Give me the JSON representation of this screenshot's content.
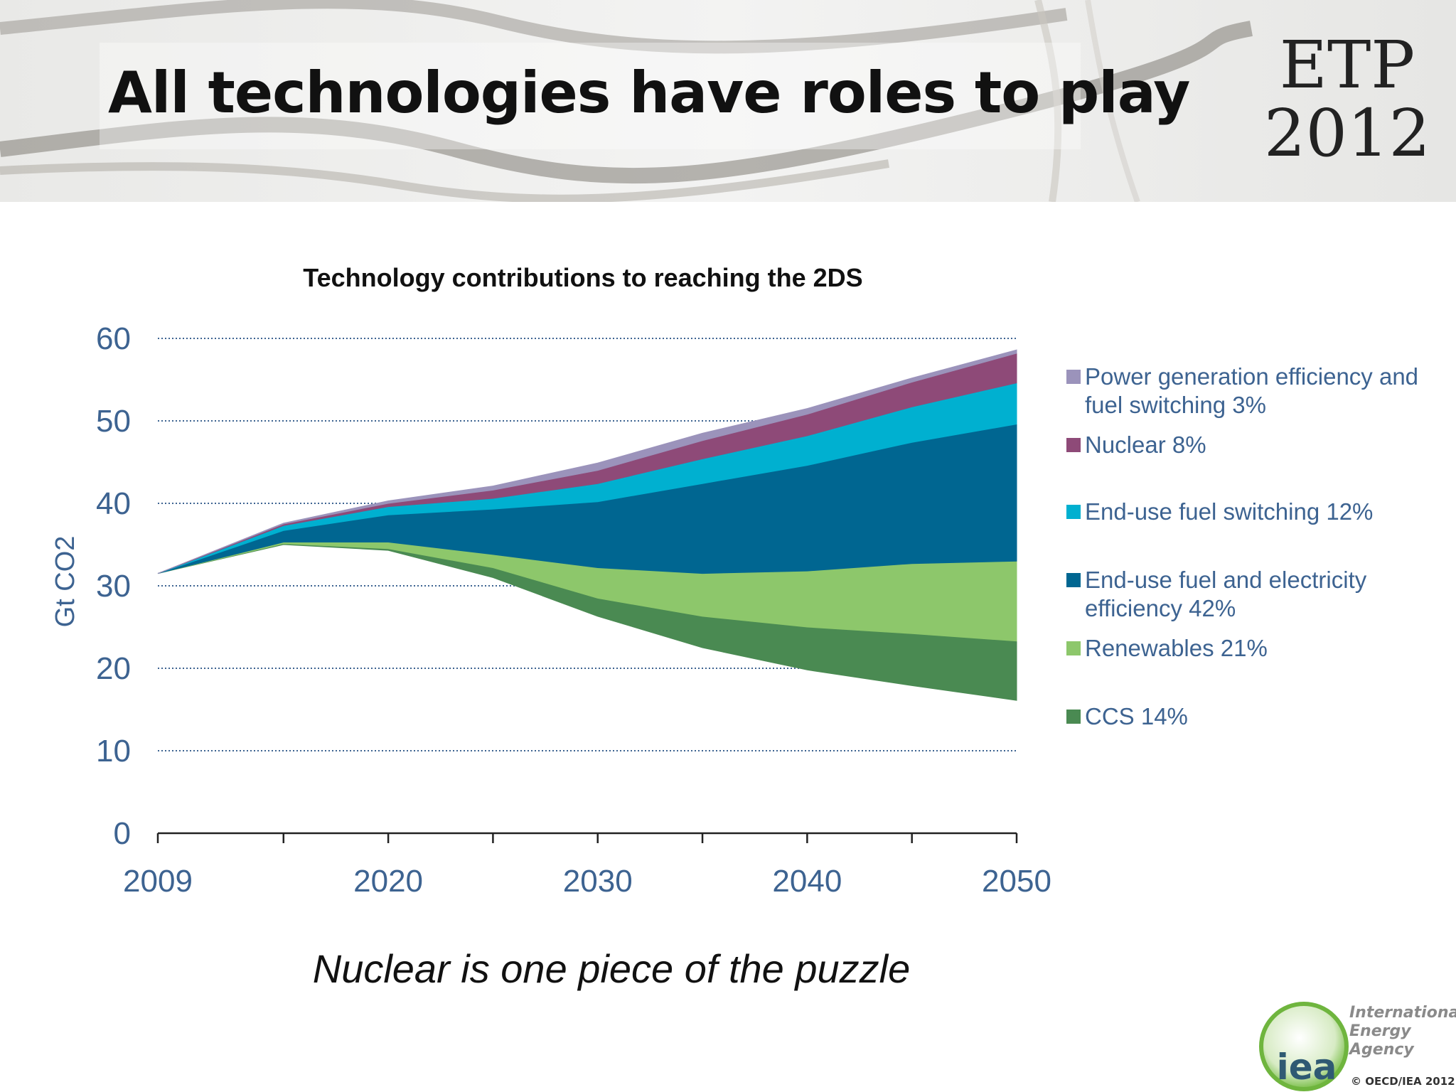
{
  "slide": {
    "title": "All technologies have roles to play",
    "brand_line1": "ETP",
    "brand_line2": "2012",
    "subtitle": "Nuclear is one piece of the puzzle",
    "organization_name": "International Energy Agency",
    "organization_short": "iea",
    "copyright": "© OECD/IEA 2012"
  },
  "chart_data": {
    "type": "area",
    "title": "Technology contributions to reaching the 2DS",
    "xlabel": "",
    "ylabel": "Gt CO2",
    "x": [
      2009,
      2015,
      2020,
      2025,
      2030,
      2035,
      2040,
      2045,
      2050
    ],
    "xlim": [
      2009,
      2050
    ],
    "ylim": [
      0,
      60
    ],
    "x_ticks": [
      2009,
      2020,
      2030,
      2040,
      2050
    ],
    "y_ticks": [
      0,
      10,
      20,
      30,
      40,
      50,
      60
    ],
    "grid": "horizontal dotted",
    "legend_position": "right",
    "baseline": [
      31.5,
      35.0,
      34.3,
      31.0,
      26.3,
      22.5,
      19.8,
      17.9,
      16.1
    ],
    "series": [
      {
        "name": "CCS 14%",
        "color": "#4a8a52",
        "values": [
          0.0,
          0.1,
          0.2,
          1.2,
          2.2,
          3.8,
          5.2,
          6.3,
          7.2
        ]
      },
      {
        "name": "Renewables 21%",
        "color": "#8dc76b",
        "values": [
          0.0,
          0.2,
          0.8,
          1.6,
          3.7,
          5.2,
          6.8,
          8.5,
          9.7
        ]
      },
      {
        "name": "End-use fuel and electricity efficiency 42%",
        "color": "#006691",
        "values": [
          0.0,
          1.4,
          3.3,
          5.5,
          8.0,
          10.9,
          12.8,
          14.7,
          16.6
        ]
      },
      {
        "name": "End-use fuel switching 12%",
        "color": "#00b0d0",
        "values": [
          0.0,
          0.6,
          1.0,
          1.3,
          2.2,
          3.0,
          3.6,
          4.3,
          5.0
        ]
      },
      {
        "name": "Nuclear 8%",
        "color": "#8e4a78",
        "values": [
          0.0,
          0.2,
          0.4,
          1.0,
          1.6,
          2.2,
          2.6,
          3.0,
          3.6
        ]
      },
      {
        "name": "Power generation efficiency and fuel switching 3%",
        "color": "#9b93bb",
        "values": [
          0.0,
          0.1,
          0.3,
          0.5,
          0.9,
          0.9,
          0.7,
          0.5,
          0.4
        ]
      }
    ]
  }
}
